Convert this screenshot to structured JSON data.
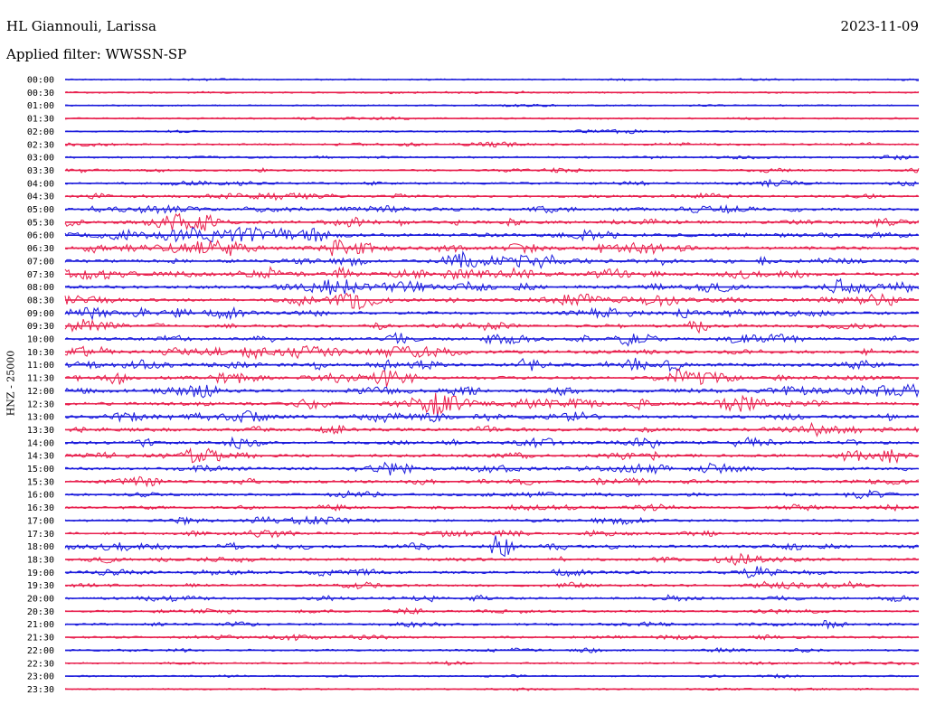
{
  "header": {
    "station": "HL Giannouli, Larissa",
    "date": "2023-11-09",
    "filter": "Applied filter: WWSSN-SP"
  },
  "axis": {
    "ylabel": "HNZ - 25000"
  },
  "colors": {
    "trace_a": "#1c1cdc",
    "trace_b": "#e8204e"
  },
  "chart_data": {
    "type": "line",
    "title": "HL Giannouli, Larissa",
    "subtitle": "Applied filter: WWSSN-SP",
    "ylabel": "HNZ - 25000",
    "rows": [
      "00:00",
      "00:30",
      "01:00",
      "01:30",
      "02:00",
      "02:30",
      "03:00",
      "03:30",
      "04:00",
      "04:30",
      "05:00",
      "05:30",
      "06:00",
      "06:30",
      "07:00",
      "07:30",
      "08:00",
      "08:30",
      "09:00",
      "09:30",
      "10:00",
      "10:30",
      "11:00",
      "11:30",
      "12:00",
      "12:30",
      "13:00",
      "13:30",
      "14:00",
      "14:30",
      "15:00",
      "15:30",
      "16:00",
      "16:30",
      "17:00",
      "17:30",
      "18:00",
      "18:30",
      "19:00",
      "19:30",
      "20:00",
      "20:30",
      "21:00",
      "21:30",
      "22:00",
      "22:30",
      "23:00",
      "23:30"
    ],
    "activity": [
      0.15,
      0.2,
      0.12,
      0.2,
      0.2,
      0.3,
      0.35,
      0.35,
      0.45,
      0.5,
      0.7,
      0.85,
      1.0,
      1.0,
      0.95,
      0.9,
      0.95,
      0.9,
      0.85,
      0.8,
      0.8,
      0.95,
      1.0,
      0.95,
      0.95,
      0.9,
      0.9,
      0.85,
      0.85,
      0.85,
      0.8,
      0.75,
      0.55,
      0.55,
      0.6,
      0.6,
      0.65,
      0.65,
      0.6,
      0.6,
      0.55,
      0.45,
      0.5,
      0.45,
      0.35,
      0.25,
      0.2,
      0.2
    ],
    "series": [
      {
        "name": "trace_a",
        "rows": "even"
      },
      {
        "name": "trace_b",
        "rows": "odd"
      }
    ]
  }
}
